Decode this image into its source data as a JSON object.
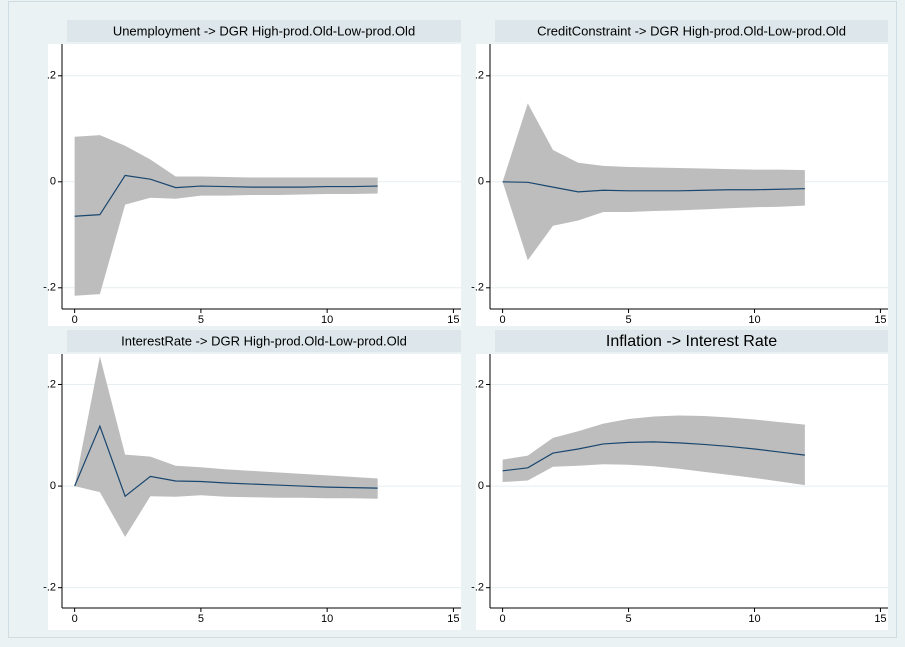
{
  "chart_data": [
    {
      "type": "line",
      "title": "Unemployment -> DGR High-prod.Old-Low-prod.Old",
      "x": [
        0,
        1,
        2,
        3,
        4,
        5,
        6,
        7,
        8,
        9,
        10,
        11,
        12
      ],
      "values": [
        -0.065,
        -0.062,
        0.012,
        0.005,
        -0.011,
        -0.008,
        -0.009,
        -0.01,
        -0.01,
        -0.01,
        -0.009,
        -0.009,
        -0.008
      ],
      "ci_upper": [
        0.085,
        0.088,
        0.068,
        0.042,
        0.01,
        0.01,
        0.009,
        0.008,
        0.008,
        0.008,
        0.008,
        0.008,
        0.008
      ],
      "ci_lower": [
        -0.215,
        -0.212,
        -0.043,
        -0.03,
        -0.032,
        -0.026,
        -0.026,
        -0.025,
        -0.025,
        -0.024,
        -0.023,
        -0.023,
        -0.022
      ],
      "color": "#1a476f",
      "band_color": "#bdbdbd",
      "xlim": [
        -0.5,
        15.3
      ],
      "ylim": [
        -0.24,
        0.26
      ],
      "xticks": [
        0,
        5,
        10,
        15
      ],
      "yticks": [
        {
          "value": -0.2,
          "label": "-.2"
        },
        0,
        {
          "value": 0.2,
          "label": ".2"
        }
      ],
      "grid": true
    },
    {
      "type": "line",
      "title": "CreditConstraint -> DGR High-prod.Old-Low-prod.Old",
      "x": [
        0,
        1,
        2,
        3,
        4,
        5,
        6,
        7,
        8,
        9,
        10,
        11,
        12
      ],
      "values": [
        0,
        -0.001,
        -0.01,
        -0.019,
        -0.016,
        -0.017,
        -0.017,
        -0.017,
        -0.016,
        -0.015,
        -0.015,
        -0.014,
        -0.013
      ],
      "ci_upper": [
        0,
        0.148,
        0.06,
        0.036,
        0.03,
        0.028,
        0.027,
        0.026,
        0.025,
        0.024,
        0.023,
        0.023,
        0.022
      ],
      "ci_lower": [
        0,
        -0.148,
        -0.083,
        -0.073,
        -0.057,
        -0.057,
        -0.055,
        -0.054,
        -0.052,
        -0.05,
        -0.048,
        -0.047,
        -0.045
      ],
      "color": "#1a476f",
      "band_color": "#bdbdbd",
      "xlim": [
        -0.5,
        15.3
      ],
      "ylim": [
        -0.24,
        0.26
      ],
      "xticks": [
        0,
        5,
        10,
        15
      ],
      "yticks": [
        {
          "value": -0.2,
          "label": "-.2"
        },
        0,
        {
          "value": 0.2,
          "label": ".2"
        }
      ],
      "grid": true
    },
    {
      "type": "line",
      "title": "InterestRate -> DGR High-prod.Old-Low-prod.Old",
      "x": [
        0,
        1,
        2,
        3,
        4,
        5,
        6,
        7,
        8,
        9,
        10,
        11,
        12
      ],
      "values": [
        0,
        0.118,
        -0.02,
        0.019,
        0.01,
        0.009,
        0.006,
        0.004,
        0.002,
        0.0,
        -0.002,
        -0.003,
        -0.004
      ],
      "ci_upper": [
        0,
        0.255,
        0.062,
        0.058,
        0.04,
        0.037,
        0.033,
        0.03,
        0.027,
        0.024,
        0.021,
        0.018,
        0.015
      ],
      "ci_lower": [
        0,
        -0.012,
        -0.1,
        -0.02,
        -0.021,
        -0.018,
        -0.021,
        -0.022,
        -0.023,
        -0.023,
        -0.024,
        -0.024,
        -0.025
      ],
      "color": "#1a476f",
      "band_color": "#bdbdbd",
      "xlim": [
        -0.5,
        15.3
      ],
      "ylim": [
        -0.24,
        0.26
      ],
      "xticks": [
        0,
        5,
        10,
        15
      ],
      "yticks": [
        {
          "value": -0.2,
          "label": "-.2"
        },
        0,
        {
          "value": 0.2,
          "label": ".2"
        }
      ],
      "grid": true
    },
    {
      "type": "line",
      "title": "Inflation -> Interest Rate",
      "x": [
        0,
        1,
        2,
        3,
        4,
        5,
        6,
        7,
        8,
        9,
        10,
        11,
        12
      ],
      "values": [
        0.03,
        0.036,
        0.065,
        0.073,
        0.083,
        0.086,
        0.087,
        0.085,
        0.082,
        0.078,
        0.073,
        0.067,
        0.061
      ],
      "ci_upper": [
        0.052,
        0.06,
        0.095,
        0.108,
        0.123,
        0.132,
        0.137,
        0.139,
        0.138,
        0.135,
        0.131,
        0.126,
        0.121
      ],
      "ci_lower": [
        0.008,
        0.011,
        0.038,
        0.04,
        0.043,
        0.042,
        0.039,
        0.034,
        0.028,
        0.022,
        0.016,
        0.009,
        0.002
      ],
      "color": "#1a476f",
      "band_color": "#bdbdbd",
      "xlim": [
        -0.5,
        15.3
      ],
      "ylim": [
        -0.24,
        0.26
      ],
      "xticks": [
        0,
        5,
        10,
        15
      ],
      "yticks": [
        {
          "value": -0.2,
          "label": "-.2"
        },
        0,
        {
          "value": 0.2,
          "label": ".2"
        }
      ],
      "grid": true
    }
  ]
}
